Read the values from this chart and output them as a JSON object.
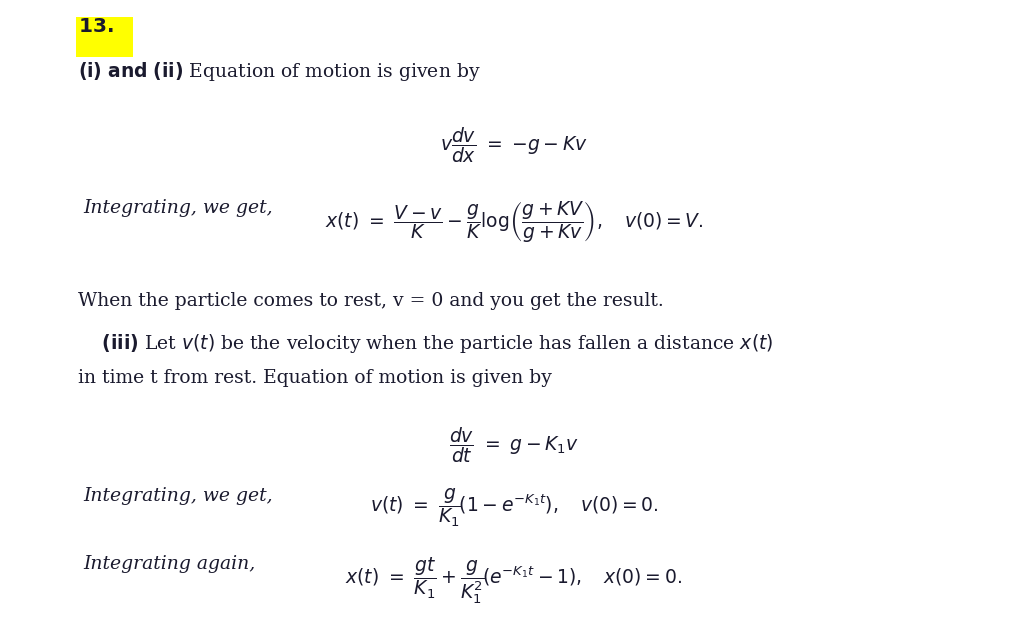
{
  "background_color": "#ffffff",
  "highlight_color": "#ffff00",
  "text_color": "#1a1a2e",
  "figsize": [
    10.28,
    6.22
  ],
  "dpi": 100,
  "title_num": "13.",
  "line1": "(i) \\textbf{and} (ii) Equation of motion is given by",
  "eq1": "v\\dfrac{dv}{dx} = -g - Kv",
  "label_integ1": "Integrating, we get,",
  "eq2": "x(t) = \\dfrac{V-v}{K} - \\dfrac{g}{K}\\log\\left(\\dfrac{g+KV}{g+Kv}\\right),\\quad v(0)=V.",
  "para1": "When the particle comes to rest, v = 0 and you get the result.",
  "para2": "\\textbf{(iii)} Let $v(t)$ be the velocity when the particle has fallen a distance $x(t)$",
  "para3": "in time t from rest. Equation of motion is given by",
  "eq3": "\\dfrac{dv}{dt} = g - K_1 v",
  "label_integ2": "Integrating, we get,",
  "eq4": "v(t) = \\dfrac{g}{K_1}\\left(1 - e^{-K_1 t}\\right),\\quad v(0)=0.",
  "label_integ3": "Integrating again,",
  "eq5": "x(t) = \\dfrac{gt}{K_1} + \\dfrac{g}{K_1^2}\\left(e^{-K_1 t} - 1\\right),\\quad x(0)=0."
}
